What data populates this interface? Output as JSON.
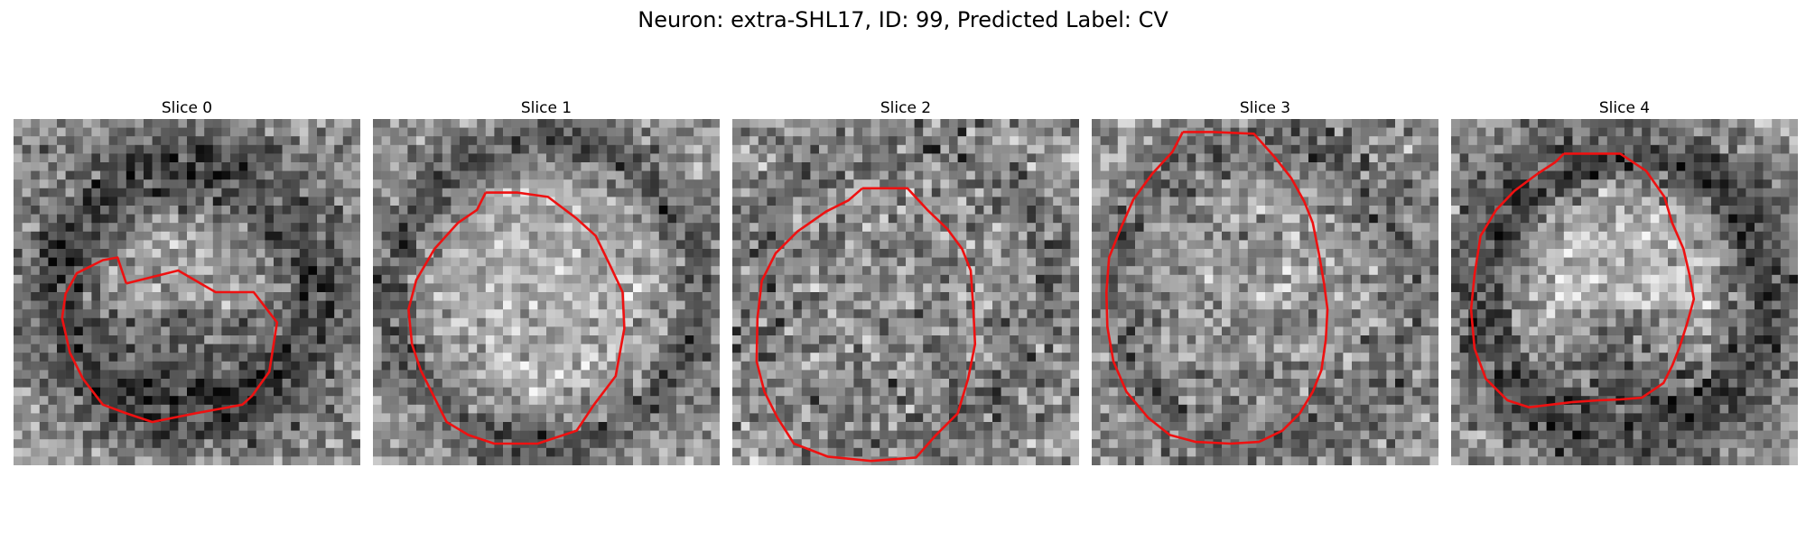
{
  "figure": {
    "title": "Neuron: extra-SHL17, ID: 99, Predicted Label: CV"
  },
  "colors": {
    "contour": "#ee1111",
    "background": "#ffffff"
  },
  "slices": [
    {
      "title": "Slice 0",
      "seed": 11,
      "noise": 0.38,
      "ring": {
        "r": 0.36,
        "w": 0.09,
        "dark": 0.32
      },
      "cell": {
        "r": 0.3,
        "light": 0.04
      },
      "lower_dark": 0.22,
      "contour": [
        [
          13,
          19
        ],
        [
          19,
          17.5
        ],
        [
          23.3,
          20
        ],
        [
          27.7,
          20
        ],
        [
          30.4,
          23.5
        ],
        [
          29.5,
          29.2
        ],
        [
          27.5,
          32
        ],
        [
          26.4,
          33
        ],
        [
          21,
          34
        ],
        [
          16,
          35
        ],
        [
          13,
          34
        ],
        [
          10.3,
          33
        ],
        [
          8,
          30
        ],
        [
          6.5,
          27
        ],
        [
          5.6,
          23
        ],
        [
          6,
          20.2
        ],
        [
          7.3,
          17.8
        ],
        [
          10.3,
          16.3
        ],
        [
          12,
          16
        ]
      ]
    },
    {
      "title": "Slice 1",
      "seed": 23,
      "noise": 0.36,
      "ring": {
        "r": 0.42,
        "w": 0.07,
        "dark": 0.25
      },
      "cell": {
        "r": 0.4,
        "light": 0.12
      },
      "lower_dark": 0.0,
      "contour": [
        [
          13,
          8.5
        ],
        [
          16.7,
          8.5
        ],
        [
          20.2,
          9
        ],
        [
          23.5,
          11.5
        ],
        [
          25.7,
          13.5
        ],
        [
          27.4,
          17
        ],
        [
          28.8,
          20
        ],
        [
          29,
          24.2
        ],
        [
          28,
          29.7
        ],
        [
          25.5,
          33
        ],
        [
          23.5,
          36
        ],
        [
          19,
          37.5
        ],
        [
          14,
          37.5
        ],
        [
          11,
          36.5
        ],
        [
          8.5,
          35
        ],
        [
          7,
          32
        ],
        [
          5.5,
          29
        ],
        [
          4.5,
          26
        ],
        [
          4.1,
          22
        ],
        [
          5,
          18.6
        ],
        [
          7.1,
          15
        ],
        [
          9.8,
          12
        ],
        [
          12,
          10.5
        ]
      ]
    },
    {
      "title": "Slice 2",
      "seed": 37,
      "noise": 0.45,
      "ring": {
        "r": 0.44,
        "w": 0.06,
        "dark": 0.12
      },
      "cell": {
        "r": 0.42,
        "light": -0.02
      },
      "lower_dark": 0.05,
      "contour": [
        [
          15,
          8
        ],
        [
          20.2,
          8
        ],
        [
          22.5,
          10.5
        ],
        [
          24.8,
          12.7
        ],
        [
          26.5,
          15
        ],
        [
          27.5,
          17.5
        ],
        [
          27.8,
          22
        ],
        [
          28,
          26
        ],
        [
          27.2,
          30
        ],
        [
          26,
          34
        ],
        [
          23.5,
          36.5
        ],
        [
          21.2,
          39.1
        ],
        [
          16,
          39.5
        ],
        [
          11,
          39
        ],
        [
          7.1,
          37.5
        ],
        [
          5.2,
          34.5
        ],
        [
          3.7,
          31.5
        ],
        [
          2.8,
          28
        ],
        [
          2.9,
          23
        ],
        [
          3.4,
          18.7
        ],
        [
          5,
          15.5
        ],
        [
          7.5,
          13
        ],
        [
          10.8,
          10.7
        ],
        [
          13.4,
          9.4
        ]
      ]
    },
    {
      "title": "Slice 3",
      "seed": 53,
      "noise": 0.4,
      "ring": {
        "r": 0.42,
        "w": 0.08,
        "dark": 0.18
      },
      "cell": {
        "r": 0.4,
        "light": 0.05
      },
      "lower_dark": 0.12,
      "contour": [
        [
          10.5,
          1.5
        ],
        [
          14,
          1.5
        ],
        [
          18.7,
          1.7
        ],
        [
          21.2,
          4.5
        ],
        [
          23,
          6.8
        ],
        [
          24.5,
          9.5
        ],
        [
          25.5,
          12
        ],
        [
          26.2,
          15.5
        ],
        [
          26.8,
          19
        ],
        [
          27.2,
          22
        ],
        [
          27,
          25.5
        ],
        [
          26.5,
          29
        ],
        [
          25.5,
          31.5
        ],
        [
          24,
          34
        ],
        [
          22,
          36
        ],
        [
          19.3,
          37.3
        ],
        [
          16,
          37.5
        ],
        [
          12,
          37.3
        ],
        [
          9,
          36.5
        ],
        [
          6.5,
          34.5
        ],
        [
          4,
          31.5
        ],
        [
          2.5,
          28
        ],
        [
          1.8,
          24
        ],
        [
          1.7,
          20
        ],
        [
          2,
          16
        ],
        [
          3.4,
          12.5
        ],
        [
          4.8,
          9.3
        ],
        [
          7,
          6.3
        ],
        [
          9.3,
          3.8
        ]
      ]
    },
    {
      "title": "Slice 4",
      "seed": 71,
      "noise": 0.38,
      "ring": {
        "r": 0.4,
        "w": 0.09,
        "dark": 0.3
      },
      "cell": {
        "r": 0.34,
        "light": 0.15
      },
      "lower_dark": 0.3,
      "contour": [
        [
          13,
          4
        ],
        [
          19.5,
          4
        ],
        [
          22.5,
          6
        ],
        [
          24.6,
          9
        ],
        [
          25.5,
          12
        ],
        [
          26.8,
          15
        ],
        [
          27.5,
          18
        ],
        [
          28,
          20.8
        ],
        [
          27.2,
          23.7
        ],
        [
          26.3,
          26.5
        ],
        [
          25.5,
          28.5
        ],
        [
          24.5,
          30.5
        ],
        [
          22,
          32.2
        ],
        [
          19.5,
          32.4
        ],
        [
          17,
          32.5
        ],
        [
          14,
          32.7
        ],
        [
          11.5,
          33
        ],
        [
          9,
          33.3
        ],
        [
          6.5,
          32.5
        ],
        [
          4,
          30
        ],
        [
          2.7,
          26.5
        ],
        [
          2.3,
          22
        ],
        [
          2.7,
          18
        ],
        [
          3.4,
          13.5
        ],
        [
          5.2,
          10.5
        ],
        [
          7.3,
          8.3
        ],
        [
          10,
          6.3
        ],
        [
          12,
          5
        ]
      ]
    }
  ]
}
